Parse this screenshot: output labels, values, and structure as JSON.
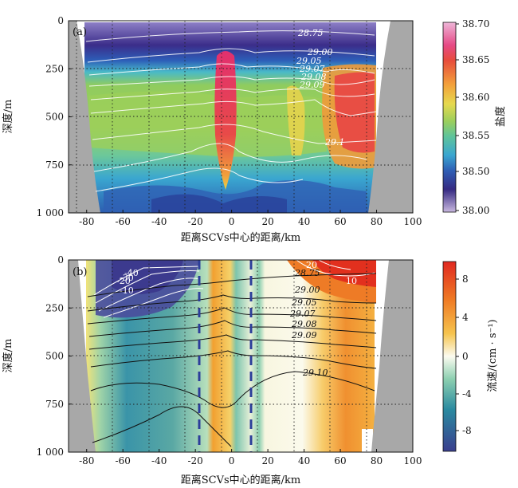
{
  "chart_data": [
    {
      "panel_label": "(a)",
      "type": "heatmap",
      "xlabel": "距离SCVs中心的距离/km",
      "ylabel": "深度/m",
      "xlim": [
        -90,
        100
      ],
      "ylim": [
        1000,
        0
      ],
      "xticks": [
        "-80",
        "-60",
        "-40",
        "-20",
        "0",
        "20",
        "40",
        "60",
        "80",
        "100"
      ],
      "yticks": [
        "0",
        "250",
        "500",
        "750",
        "1 000"
      ],
      "colorbar": {
        "label": "盐度",
        "ticks": [
          "38.70",
          "38.65",
          "38.60",
          "38.55",
          "38.50",
          "38.00"
        ]
      },
      "contour_labels": [
        "28.75",
        "29.00",
        "29.05",
        "29.07",
        "29.08",
        "29.09",
        "29.1"
      ]
    },
    {
      "panel_label": "(b)",
      "type": "heatmap",
      "xlabel": "距离SCVs中心的距离/km",
      "ylabel": "深度/m",
      "xlim": [
        -90,
        100
      ],
      "ylim": [
        1000,
        0
      ],
      "xticks": [
        "-80",
        "-60",
        "-40",
        "-20",
        "0",
        "20",
        "40",
        "60",
        "80",
        "100"
      ],
      "yticks": [
        "0",
        "250",
        "500",
        "750",
        "1 000"
      ],
      "colorbar": {
        "label": "流速/(cm · s⁻¹)",
        "ticks": [
          "8",
          "4",
          "0",
          "-4",
          "-8"
        ]
      },
      "density_contours": [
        "28.75",
        "29.00",
        "29.05",
        "29.07",
        "29.08",
        "29.09",
        "29.10"
      ],
      "velocity_contours": [
        "-40",
        "-30",
        "-20",
        "-10",
        "20",
        "10"
      ],
      "vertical_lines_km": [
        -14,
        14
      ]
    }
  ],
  "colors": {
    "salinity_ramp": [
      "#d8c8e6",
      "#3a2a86",
      "#2f5fb5",
      "#3aa0cc",
      "#7ccc9a",
      "#9cd060",
      "#e0d44a",
      "#f0a03c",
      "#ea5040",
      "#e03070"
    ],
    "velocity_ramp": [
      "#3a3e8e",
      "#2a8aa0",
      "#8ccfb0",
      "#fbfbf0",
      "#f5c050",
      "#ef7a24",
      "#e02820"
    ],
    "land": "#a8a8a8"
  }
}
